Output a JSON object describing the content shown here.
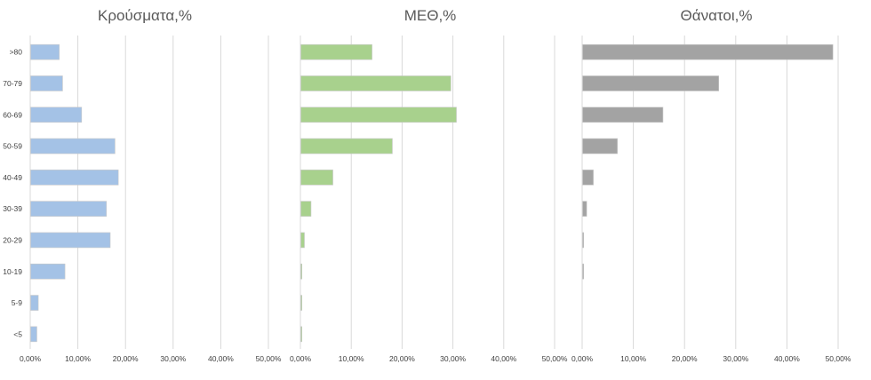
{
  "chart_data": [
    {
      "type": "bar",
      "orientation": "horizontal",
      "title": "Κρούσματα,%",
      "categories": [
        ">80",
        "70-79",
        "60-69",
        "50-59",
        "40-49",
        "30-39",
        "20-29",
        "10-19",
        "5-9",
        "<5"
      ],
      "values": [
        6.0,
        6.7,
        10.7,
        17.7,
        18.4,
        15.9,
        16.7,
        7.2,
        1.6,
        1.3
      ],
      "xlim": [
        0,
        50
      ],
      "xticks": [
        "0,00%",
        "10,00%",
        "20,00%",
        "30,00%",
        "40,00%",
        "50,00%"
      ],
      "color": "#a4c2e6",
      "grid": true
    },
    {
      "type": "bar",
      "orientation": "horizontal",
      "title": "ΜΕΘ,%",
      "categories": [
        ">80",
        "70-79",
        "60-69",
        "50-59",
        "40-49",
        "30-39",
        "20-29",
        "10-19",
        "5-9",
        "<5"
      ],
      "values": [
        14.0,
        29.5,
        30.6,
        18.0,
        6.3,
        2.0,
        0.7,
        0.2,
        0.1,
        0.1
      ],
      "xlim": [
        0,
        50
      ],
      "xticks": [
        "0,00%",
        "10,00%",
        "20,00%",
        "30,00%",
        "40,00%",
        "50,00%"
      ],
      "color": "#a8d18d",
      "grid": true
    },
    {
      "type": "bar",
      "orientation": "horizontal",
      "title": "Θάνατοι,%",
      "categories": [
        ">80",
        "70-79",
        "60-69",
        "50-59",
        "40-49",
        "30-39",
        "20-29",
        "10-19",
        "5-9",
        "<5"
      ],
      "values": [
        48.9,
        26.6,
        15.7,
        6.8,
        2.1,
        0.8,
        0.2,
        0.1,
        0,
        0
      ],
      "xlim": [
        0,
        50
      ],
      "xticks": [
        "0,00%",
        "10,00%",
        "20,00%",
        "30,00%",
        "40,00%",
        "50,00%"
      ],
      "color": "#a3a3a3",
      "grid": true
    }
  ]
}
